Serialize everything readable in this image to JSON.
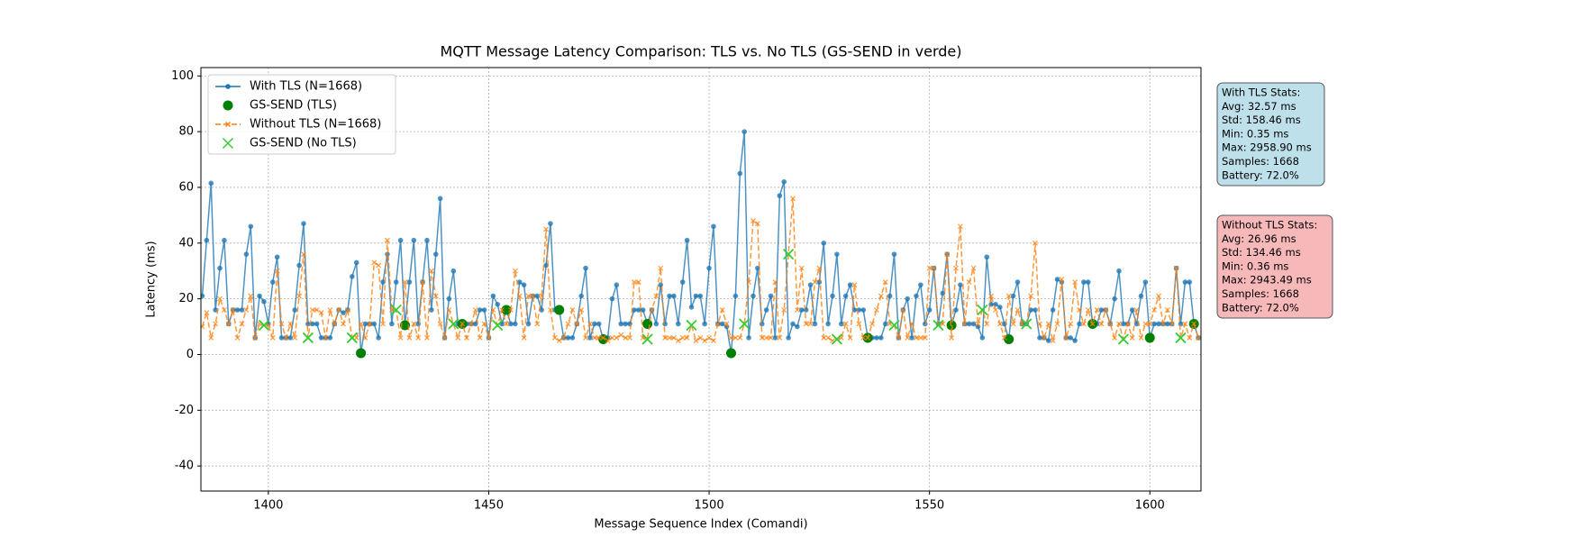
{
  "chart_data": {
    "type": "line",
    "title": "MQTT Message Latency Comparison: TLS vs. No TLS (GS-SEND in verde)",
    "x_label": "Message Sequence Index (Comandi)",
    "y_label": "Latency (ms)",
    "xlim": [
      1384.7,
      1611.6
    ],
    "ylim": [
      -49,
      103
    ],
    "xticks": [
      1400,
      1450,
      1500,
      1550,
      1600
    ],
    "yticks": [
      -40,
      -20,
      0,
      20,
      40,
      60,
      80,
      100
    ],
    "grid": true,
    "legend": "upper left",
    "x": [
      1385,
      1386,
      1387,
      1388,
      1389,
      1390,
      1391,
      1392,
      1393,
      1394,
      1395,
      1396,
      1397,
      1398,
      1399,
      1400,
      1401,
      1402,
      1403,
      1404,
      1405,
      1406,
      1407,
      1408,
      1409,
      1410,
      1411,
      1412,
      1413,
      1414,
      1415,
      1416,
      1417,
      1418,
      1419,
      1420,
      1421,
      1422,
      1423,
      1424,
      1425,
      1426,
      1427,
      1428,
      1429,
      1430,
      1431,
      1432,
      1433,
      1434,
      1435,
      1436,
      1437,
      1438,
      1439,
      1440,
      1441,
      1442,
      1443,
      1444,
      1445,
      1446,
      1447,
      1448,
      1449,
      1450,
      1451,
      1452,
      1453,
      1454,
      1455,
      1456,
      1457,
      1458,
      1459,
      1460,
      1461,
      1462,
      1463,
      1464,
      1465,
      1466,
      1467,
      1468,
      1469,
      1470,
      1471,
      1472,
      1473,
      1474,
      1475,
      1476,
      1477,
      1478,
      1479,
      1480,
      1481,
      1482,
      1483,
      1484,
      1485,
      1486,
      1487,
      1488,
      1489,
      1490,
      1491,
      1492,
      1493,
      1494,
      1495,
      1496,
      1497,
      1498,
      1499,
      1500,
      1501,
      1502,
      1503,
      1504,
      1505,
      1506,
      1507,
      1508,
      1509,
      1510,
      1511,
      1512,
      1513,
      1514,
      1515,
      1516,
      1517,
      1518,
      1519,
      1520,
      1521,
      1522,
      1523,
      1524,
      1525,
      1526,
      1527,
      1528,
      1529,
      1530,
      1531,
      1532,
      1533,
      1534,
      1535,
      1536,
      1537,
      1538,
      1539,
      1540,
      1541,
      1542,
      1543,
      1544,
      1545,
      1546,
      1547,
      1548,
      1549,
      1550,
      1551,
      1552,
      1553,
      1554,
      1555,
      1556,
      1557,
      1558,
      1559,
      1560,
      1561,
      1562,
      1563,
      1564,
      1565,
      1566,
      1567,
      1568,
      1569,
      1570,
      1571,
      1572,
      1573,
      1574,
      1575,
      1576,
      1577,
      1578,
      1579,
      1580,
      1581,
      1582,
      1583,
      1584,
      1585,
      1586,
      1587,
      1588,
      1589,
      1590,
      1591,
      1592,
      1593,
      1594,
      1595,
      1596,
      1597,
      1598,
      1599,
      1600,
      1601,
      1602,
      1603,
      1604,
      1605,
      1606,
      1607,
      1608,
      1609,
      1610,
      1611
    ],
    "series": [
      {
        "name": "With TLS (N=1668)",
        "color": "#1f77b4",
        "marker": "circle",
        "dash": false,
        "values": [
          21,
          41,
          61.5,
          16,
          31,
          41,
          11,
          16,
          16,
          16,
          36,
          46,
          6,
          21,
          19,
          11,
          26,
          35,
          6,
          6,
          6,
          16,
          32,
          47,
          11,
          11,
          11,
          6,
          6,
          6,
          11,
          16,
          15,
          16,
          28,
          33,
          0.5,
          11,
          11,
          11,
          6,
          26,
          36,
          11,
          26,
          41,
          10.5,
          26,
          41,
          11,
          26,
          41,
          16,
          36,
          56,
          6,
          20,
          30,
          11,
          11,
          11,
          11,
          11,
          16,
          16,
          6,
          21,
          18,
          11,
          16,
          11,
          11,
          26,
          25,
          11,
          21,
          21,
          16,
          32,
          47,
          16,
          16,
          6,
          6,
          6,
          11,
          21,
          31,
          6,
          11,
          11,
          5.5,
          6,
          20,
          25,
          11,
          11,
          11,
          16,
          16,
          16,
          11,
          16,
          11,
          25,
          11,
          21,
          21,
          11,
          26,
          41,
          17,
          21,
          21,
          11,
          31,
          46,
          11,
          11,
          10,
          0.5,
          21,
          65,
          80,
          6,
          21,
          31,
          11,
          16,
          21,
          6,
          57,
          62,
          6,
          11,
          10,
          16,
          16,
          25,
          11,
          26,
          40,
          11,
          21,
          36,
          11,
          21,
          25,
          16,
          16,
          16,
          6,
          6,
          6,
          6,
          11,
          21,
          36,
          6,
          16,
          20,
          6,
          21,
          25,
          11,
          16,
          31,
          11,
          22,
          36,
          10.5,
          16,
          25,
          11,
          11,
          11,
          10,
          6,
          35,
          18,
          18,
          17,
          11,
          5.5,
          21,
          26,
          11,
          11,
          16,
          16,
          6,
          6,
          5,
          16,
          27,
          26,
          6,
          6,
          5,
          11,
          26,
          26,
          11,
          11,
          16,
          16,
          11,
          20,
          30,
          11,
          11,
          16,
          11,
          21,
          26,
          6,
          11,
          11,
          11,
          11,
          11,
          31,
          11,
          26,
          26,
          11,
          6
        ]
      },
      {
        "name": "GS-SEND (TLS)",
        "color": "#008000",
        "marker": "dot",
        "scatter": true,
        "x": [
          1421,
          1431,
          1444,
          1454,
          1466,
          1476,
          1486,
          1505,
          1536,
          1555,
          1568,
          1587,
          1600,
          1610
        ],
        "values": [
          0.5,
          10.5,
          11,
          16,
          16,
          5.5,
          11,
          0.5,
          6,
          10.5,
          5.5,
          11,
          6,
          11
        ]
      },
      {
        "name": "Without TLS (N=1668)",
        "color": "#ff7f0e",
        "marker": "x",
        "dash": true,
        "values": [
          10,
          15,
          6,
          11,
          20,
          16,
          11,
          16,
          6,
          11,
          16,
          21,
          6,
          11,
          10.5,
          10.5,
          6,
          30,
          11,
          6,
          11,
          6,
          21,
          36,
          6,
          16,
          16,
          15,
          6,
          16,
          11,
          16,
          11,
          16,
          6,
          6,
          11,
          6,
          11,
          33,
          32,
          11,
          41,
          16,
          16,
          6,
          26,
          6,
          11,
          6,
          26,
          6,
          30,
          21,
          11,
          6,
          16,
          11,
          6,
          11,
          6,
          11,
          16,
          6,
          11,
          6,
          16,
          10.5,
          16,
          11,
          16,
          30,
          21,
          6,
          21,
          21,
          11,
          21,
          45,
          16,
          6,
          5,
          6,
          11,
          16,
          11,
          16,
          6,
          11,
          6,
          6,
          6,
          5,
          6,
          6,
          7,
          6,
          6,
          26,
          26,
          6,
          5.5,
          16,
          21,
          31,
          6,
          6,
          6,
          5,
          6,
          6,
          10.5,
          5,
          6,
          5,
          6,
          5,
          11,
          16,
          11,
          6,
          6,
          6,
          11,
          26,
          48,
          47,
          6,
          6,
          6,
          26,
          6,
          16,
          36,
          56,
          16,
          31,
          11,
          11,
          26,
          31,
          6,
          6,
          5,
          5.5,
          6,
          11,
          6,
          25,
          11,
          6,
          6,
          11,
          16,
          21,
          26,
          11,
          10.5,
          6,
          16,
          6,
          11,
          6,
          6,
          6,
          31,
          31,
          10.5,
          11,
          36,
          6,
          31,
          46,
          11,
          26,
          31,
          11,
          16,
          11,
          21,
          16,
          11,
          6,
          21,
          11,
          16,
          11,
          11,
          21,
          40,
          11,
          6,
          11,
          5,
          11,
          27,
          6,
          11,
          26,
          16,
          11,
          16,
          11,
          16,
          11,
          16,
          11,
          6,
          11,
          5.5,
          11,
          6,
          16,
          6,
          11,
          11,
          16,
          21,
          11,
          16,
          11,
          31,
          6,
          11,
          6,
          11,
          6
        ]
      },
      {
        "name": "GS-SEND (No TLS)",
        "color": "#32cd32",
        "marker": "bigx",
        "scatter": true,
        "x": [
          1399,
          1409,
          1419,
          1429,
          1442,
          1452,
          1486,
          1496,
          1508,
          1518,
          1529,
          1542,
          1552,
          1562,
          1572,
          1594,
          1607
        ],
        "values": [
          10.5,
          6,
          6,
          16,
          11,
          10.5,
          5.5,
          10.5,
          11,
          36,
          5.5,
          10.5,
          10.5,
          16,
          11,
          5.5,
          6
        ]
      }
    ],
    "stat_boxes": [
      {
        "color": "#add8e6",
        "lines": [
          "With TLS Stats:",
          "Avg: 32.57 ms",
          "Std: 158.46 ms",
          "Min: 0.35 ms",
          "Max: 2958.90 ms",
          "Samples: 1668",
          "Battery: 72.0%"
        ]
      },
      {
        "color": "#f4a6a6",
        "lines": [
          "Without TLS Stats:",
          "Avg: 26.96 ms",
          "Std: 134.46 ms",
          "Min: 0.36 ms",
          "Max: 2943.49 ms",
          "Samples: 1668",
          "Battery: 72.0%"
        ]
      }
    ]
  }
}
